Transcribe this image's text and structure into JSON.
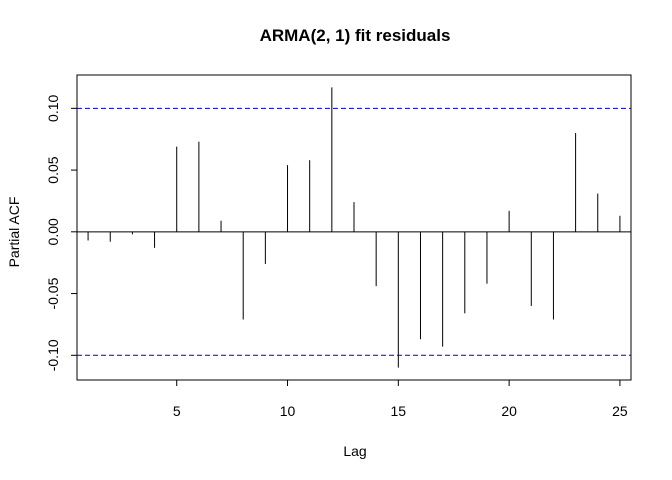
{
  "chart_data": {
    "type": "bar",
    "title": "ARMA(2, 1) fit residuals",
    "xlabel": "Lag",
    "ylabel": "Partial ACF",
    "x": [
      1,
      2,
      3,
      4,
      5,
      6,
      7,
      8,
      9,
      10,
      11,
      12,
      13,
      14,
      15,
      16,
      17,
      18,
      19,
      20,
      21,
      22,
      23,
      24,
      25
    ],
    "values": [
      -0.007,
      -0.008,
      -0.002,
      -0.013,
      0.069,
      0.073,
      0.009,
      -0.071,
      -0.026,
      0.054,
      0.058,
      0.117,
      0.024,
      -0.044,
      -0.11,
      -0.087,
      -0.093,
      -0.066,
      -0.042,
      0.017,
      -0.06,
      -0.071,
      0.08,
      0.031,
      0.013
    ],
    "xlim": [
      0.5,
      25.5
    ],
    "ylim": [
      -0.12,
      0.127
    ],
    "xticks": [
      5,
      10,
      15,
      20,
      25
    ],
    "yticks": [
      -0.1,
      -0.05,
      0.0,
      0.05,
      0.1
    ],
    "xtick_labels": [
      "5",
      "10",
      "15",
      "20",
      "25"
    ],
    "ytick_labels": [
      "-0.10",
      "-0.05",
      "0.00",
      "0.05",
      "0.10"
    ],
    "confidence_bounds": [
      0.1,
      -0.1
    ],
    "bound_color": "#0000cc",
    "bar_color": "#000000",
    "zero_line": true,
    "grid": false,
    "legend": "none"
  }
}
